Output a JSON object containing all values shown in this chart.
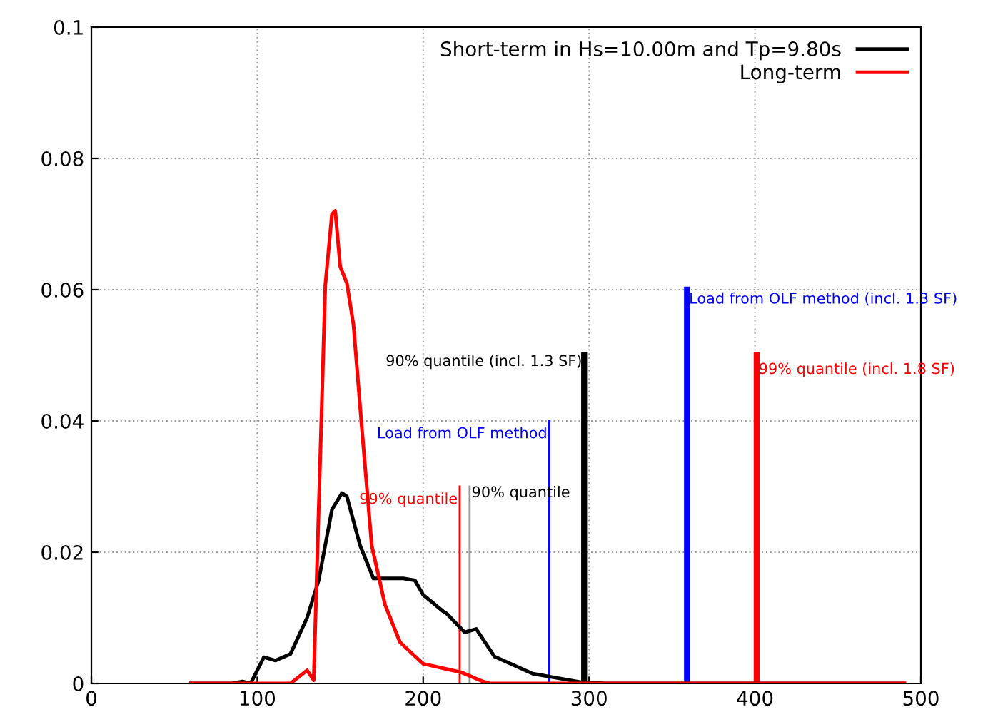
{
  "chart_data": {
    "type": "line",
    "xlim": [
      0,
      500
    ],
    "xticks": [
      0,
      100,
      200,
      300,
      400,
      500
    ],
    "ylim": [
      0,
      0.1
    ],
    "yticks": [
      0,
      0.02,
      0.04,
      0.06,
      0.08,
      0.1
    ],
    "grid": true,
    "legend": "top right",
    "line_style": "solid",
    "series": [
      {
        "name": "Short-term in Hs=10.00m and Tp=9.80s",
        "color": "#000000",
        "x": [
          60,
          85,
          91,
          96,
          104,
          111,
          120,
          130,
          137,
          145,
          151,
          154,
          162,
          170,
          188,
          195,
          200,
          212,
          214,
          225,
          232,
          243,
          266,
          295,
          310,
          400,
          490
        ],
        "values": [
          0,
          0,
          0.0003,
          0,
          0.004,
          0.0035,
          0.0045,
          0.01,
          0.0157,
          0.0265,
          0.029,
          0.0285,
          0.021,
          0.016,
          0.016,
          0.0157,
          0.0135,
          0.011,
          0.0107,
          0.0078,
          0.0083,
          0.0041,
          0.0015,
          0.0002,
          0,
          0,
          0
        ]
      },
      {
        "name": "Long-term",
        "color": "#ff0000",
        "x": [
          60,
          120,
          130,
          134,
          141,
          145,
          147,
          150,
          154,
          158,
          163,
          169,
          177,
          186,
          197,
          200,
          214,
          223,
          235,
          240,
          300,
          400,
          490
        ],
        "values": [
          0,
          0,
          0.002,
          0.0005,
          0.0607,
          0.0715,
          0.072,
          0.0635,
          0.061,
          0.0546,
          0.039,
          0.021,
          0.012,
          0.0063,
          0.0037,
          0.003,
          0.0022,
          0.0017,
          0.0004,
          0,
          0,
          0,
          0
        ]
      },
      {
        "color": "#ff0000",
        "x": [
          222,
          222
        ],
        "values": [
          0,
          0.03
        ]
      },
      {
        "color": "#999999",
        "x": [
          228,
          228
        ],
        "values": [
          0,
          0.03
        ]
      },
      {
        "color": "#0000ff",
        "x": [
          276,
          276
        ],
        "values": [
          0,
          0.04
        ]
      },
      {
        "color": "#000000",
        "x": [
          297,
          297
        ],
        "values": [
          0,
          0.05
        ]
      },
      {
        "color": "#0000ff",
        "x": [
          359,
          359
        ],
        "values": [
          0,
          0.06
        ]
      },
      {
        "color": "#ff0000",
        "x": [
          401,
          401
        ],
        "values": [
          0,
          0.05
        ]
      }
    ],
    "annotations": [
      {
        "text": "99% quantile",
        "x": 222,
        "y": 0.028
      },
      {
        "text": "90% quantile",
        "x": 228,
        "y": 0.029
      },
      {
        "text": "Load from OLF method",
        "x": 276,
        "y": 0.038
      },
      {
        "text": "90% quantile (incl. 1.3 SF)",
        "x": 297,
        "y": 0.049
      },
      {
        "text": "Load from OLF method (incl. 1.3 SF)",
        "x": 359,
        "y": 0.0585
      },
      {
        "text": "99% quantile (incl. 1.8 SF)",
        "x": 401,
        "y": 0.0478
      }
    ]
  }
}
